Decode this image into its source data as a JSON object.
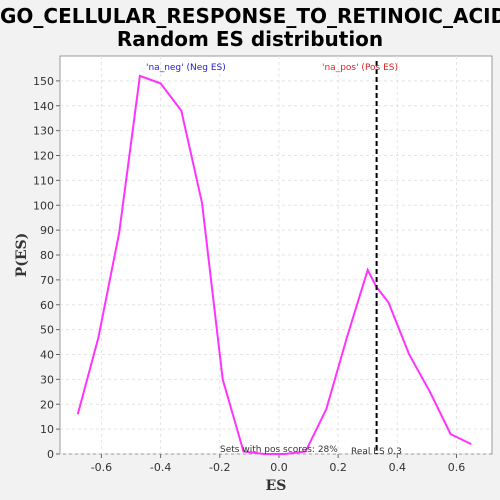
{
  "title_line1": "GO_CELLULAR_RESPONSE_TO_RETINOIC_ACID:",
  "title_line2": "Random ES distribution",
  "chart_data": {
    "type": "line",
    "xlabel": "ES",
    "ylabel": "P(ES)",
    "xlim": [
      -0.74,
      0.72
    ],
    "ylim": [
      0,
      160
    ],
    "x_ticks": [
      -0.6,
      -0.4,
      -0.2,
      0.0,
      0.2,
      0.4,
      0.6
    ],
    "x_tick_labels": [
      "-0.6",
      "-0.4",
      "-0.2",
      "0.0",
      "0.2",
      "0.4",
      "0.6"
    ],
    "y_ticks": [
      0,
      10,
      20,
      30,
      40,
      50,
      60,
      70,
      80,
      90,
      100,
      110,
      120,
      130,
      140,
      150
    ],
    "y_tick_labels": [
      "0",
      "10",
      "20",
      "30",
      "40",
      "50",
      "60",
      "70",
      "80",
      "90",
      "100",
      "110",
      "120",
      "130",
      "140",
      "150"
    ],
    "grid": true,
    "line_color": "#ff33ff",
    "series": [
      {
        "x": [
          -0.68,
          -0.61,
          -0.54,
          -0.47,
          -0.4,
          -0.33,
          -0.26,
          -0.19,
          -0.12,
          -0.05,
          0.02,
          0.09,
          0.16,
          0.23,
          0.3,
          0.33,
          0.37,
          0.44,
          0.51,
          0.58,
          0.65
        ],
        "y": [
          16,
          47,
          89,
          152,
          149,
          138,
          101,
          30,
          1,
          0,
          0,
          1,
          18,
          47,
          74,
          67,
          61,
          40,
          25,
          8,
          4
        ]
      }
    ],
    "annotations": {
      "neg_label": "'na_neg' (Neg ES)",
      "neg_color": "#2222cc",
      "pos_label": "'na_pos' (Pos ES)",
      "pos_color": "#dd2222",
      "sets_text": "Sets with pos scores: 28%",
      "real_es_text": "Real ES 0.3",
      "real_es_value": 0.33
    }
  }
}
